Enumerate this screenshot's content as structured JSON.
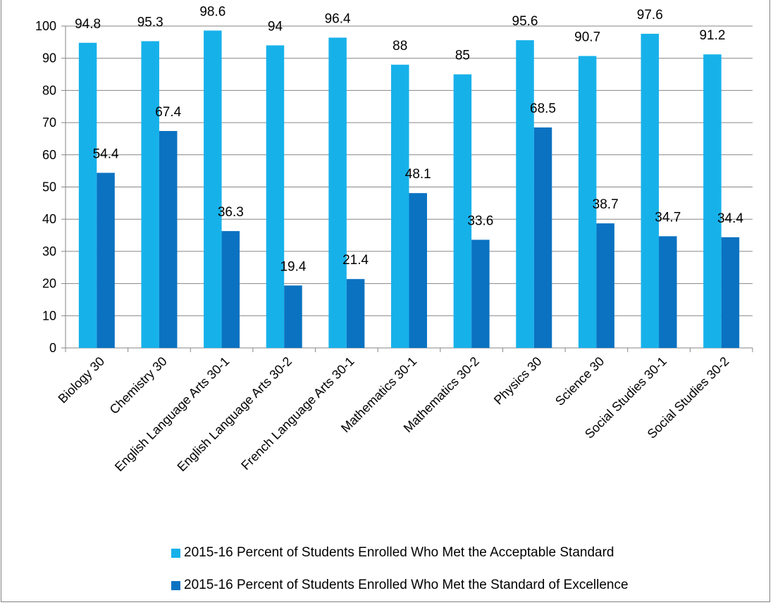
{
  "chart_data": {
    "type": "bar",
    "title": "",
    "xlabel": "",
    "ylabel": "",
    "ylim": [
      0,
      100
    ],
    "yticks": [
      0,
      10,
      20,
      30,
      40,
      50,
      60,
      70,
      80,
      90,
      100
    ],
    "grid": true,
    "legend_position": "bottom",
    "categories": [
      "Biology 30",
      "Chemistry 30",
      "English Language Arts 30-1",
      "English Language Arts 30-2",
      "French Language Arts 30-1",
      "Mathematics 30-1",
      "Mathematics 30-2",
      "Physics 30",
      "Science 30",
      "Social Studies 30-1",
      "Social Studies 30-2"
    ],
    "series": [
      {
        "name": "2015-16 Percent of Students Enrolled Who Met the Acceptable Standard",
        "color": "#17b1ea",
        "values": [
          94.8,
          95.3,
          98.6,
          94,
          96.4,
          88,
          85,
          95.6,
          90.7,
          97.6,
          91.2
        ],
        "labels": [
          "94.8",
          "95.3",
          "98.6",
          "94",
          "96.4",
          "88",
          "85",
          "95.6",
          "90.7",
          "97.6",
          "91.2"
        ]
      },
      {
        "name": "2015-16 Percent of Students Enrolled Who Met the Standard of Excellence",
        "color": "#0a72c1",
        "values": [
          54.4,
          67.4,
          36.3,
          19.4,
          21.4,
          48.1,
          33.6,
          68.5,
          38.7,
          34.7,
          34.4
        ],
        "labels": [
          "54.4",
          "67.4",
          "36.3",
          "19.4",
          "21.4",
          "48.1",
          "33.6",
          "68.5",
          "38.7",
          "34.7",
          "34.4"
        ]
      }
    ]
  }
}
